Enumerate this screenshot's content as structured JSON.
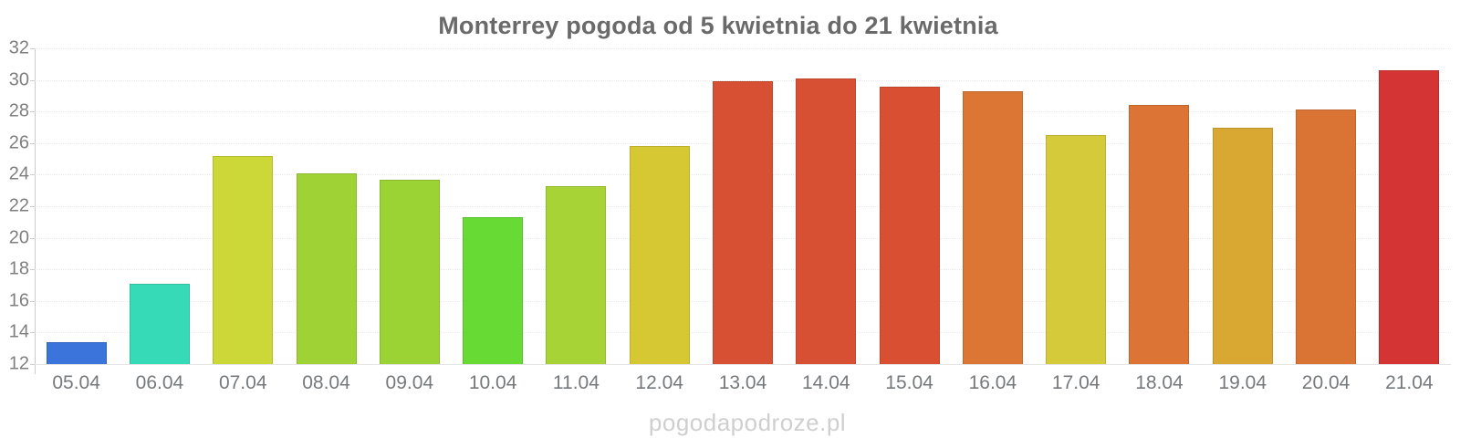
{
  "page": {
    "watermark": "pogodapodroze.pl"
  },
  "chart_data": {
    "type": "bar",
    "title": "Monterrey pogoda od 5 kwietnia do 21 kwietnia",
    "categories": [
      "05.04",
      "06.04",
      "07.04",
      "08.04",
      "09.04",
      "10.04",
      "11.04",
      "12.04",
      "13.04",
      "14.04",
      "15.04",
      "16.04",
      "17.04",
      "18.04",
      "19.04",
      "20.04",
      "21.04"
    ],
    "values": [
      13.4,
      17.1,
      25.2,
      24.1,
      23.7,
      21.3,
      23.3,
      25.8,
      29.9,
      30.1,
      29.6,
      29.3,
      26.5,
      28.4,
      27.0,
      28.1,
      30.6
    ],
    "bar_colors": [
      "#3b74db",
      "#37dab6",
      "#cbd838",
      "#9fd335",
      "#9bd335",
      "#67da33",
      "#a8d336",
      "#d6c832",
      "#d85033",
      "#d85033",
      "#d84f32",
      "#db7634",
      "#d5ca39",
      "#db7434",
      "#d9a833",
      "#d97434",
      "#d43434"
    ],
    "xlabel": "",
    "ylabel": "",
    "ylim": [
      12,
      32
    ],
    "yticks": [
      12,
      14,
      16,
      18,
      20,
      22,
      24,
      26,
      28,
      30,
      32
    ],
    "grid": "horizontal-dotted",
    "legend": "none",
    "title_color": "#6a6a6a",
    "axis_label_color": "#7f7f7f",
    "axis_line_color": "#cccccc",
    "watermark_color": "#cfcfcf"
  }
}
